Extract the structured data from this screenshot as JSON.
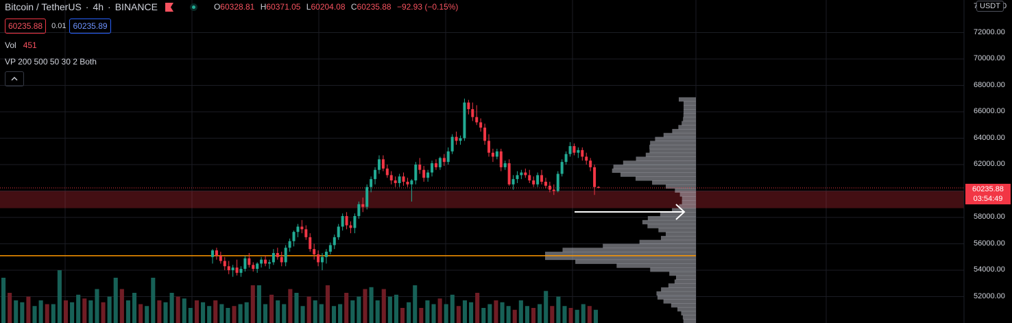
{
  "header": {
    "symbol": "Bitcoin / TetherUS",
    "interval": "4h",
    "exchange": "BINANCE",
    "ohlc": {
      "o_label": "O",
      "o": "60328.81",
      "h_label": "H",
      "h": "60371.05",
      "l_label": "L",
      "l": "60204.08",
      "c_label": "C",
      "c": "60235.88",
      "change": "−92.93 (−0.15%)"
    }
  },
  "trade": {
    "sell_price": "60235.88",
    "spread": "0.01",
    "buy_price": "60235.89"
  },
  "indicators": {
    "volume_label": "Vol",
    "volume_value": "451",
    "vp_label": "VP 200 500 50 30 2 Both"
  },
  "price_axis": {
    "currency_button": "USDT",
    "labels": [
      "72000.00",
      "70000.00",
      "68000.00",
      "66000.00",
      "64000.00",
      "62000.00",
      "58000.00",
      "56000.00",
      "54000.00",
      "52000.00"
    ],
    "top_partial": "7",
    "top_partial_right": "0",
    "current_price": "60235.88",
    "countdown": "03:54:49"
  },
  "colors": {
    "background": "#000000",
    "up": "#22ab94",
    "down": "#f23645",
    "vpoc": "#ff9800",
    "profile": "#b2b5be"
  },
  "chart_data": {
    "type": "candlestick",
    "symbol": "BTCUSDT",
    "interval": "4h",
    "y_axis": {
      "min": 50000,
      "max": 74000,
      "ticks": [
        52000,
        54000,
        56000,
        58000,
        60000,
        62000,
        64000,
        66000,
        68000,
        70000,
        72000
      ]
    },
    "last_close": 60235.88,
    "poc_price": 55100,
    "highlight_zone": [
      58700,
      60000
    ],
    "candles": [
      [
        55000,
        55600,
        54500,
        55500
      ],
      [
        55500,
        55700,
        54800,
        55100
      ],
      [
        55100,
        55400,
        54500,
        54700
      ],
      [
        54700,
        55000,
        54000,
        54300
      ],
      [
        54300,
        54700,
        53700,
        54000
      ],
      [
        54000,
        54400,
        53500,
        54200
      ],
      [
        54200,
        54800,
        53600,
        53800
      ],
      [
        53800,
        54300,
        53500,
        54100
      ],
      [
        54100,
        55100,
        53900,
        54900
      ],
      [
        54900,
        55300,
        54200,
        54400
      ],
      [
        54400,
        54600,
        53900,
        54100
      ],
      [
        54100,
        54600,
        53800,
        54500
      ],
      [
        54500,
        55000,
        54200,
        54800
      ],
      [
        54800,
        55100,
        54300,
        54500
      ],
      [
        54500,
        54800,
        54100,
        54600
      ],
      [
        54600,
        55600,
        54400,
        55300
      ],
      [
        55300,
        55700,
        54800,
        55000
      ],
      [
        55000,
        55400,
        54300,
        54600
      ],
      [
        54600,
        55900,
        54300,
        55700
      ],
      [
        55700,
        56400,
        55400,
        56200
      ],
      [
        56200,
        57000,
        55800,
        56900
      ],
      [
        56900,
        57500,
        56500,
        57300
      ],
      [
        57300,
        57800,
        56800,
        57100
      ],
      [
        57100,
        57400,
        56300,
        56500
      ],
      [
        56500,
        56800,
        55400,
        55600
      ],
      [
        55600,
        56000,
        54800,
        55200
      ],
      [
        55200,
        55500,
        54300,
        54600
      ],
      [
        54600,
        55300,
        54000,
        55000
      ],
      [
        55000,
        55600,
        54500,
        55400
      ],
      [
        55400,
        56100,
        55200,
        55900
      ],
      [
        55900,
        56700,
        55600,
        56500
      ],
      [
        56500,
        57500,
        56300,
        57300
      ],
      [
        57300,
        58300,
        57000,
        58100
      ],
      [
        58100,
        58400,
        57100,
        57400
      ],
      [
        57400,
        57700,
        56800,
        57200
      ],
      [
        57200,
        58300,
        56800,
        58100
      ],
      [
        58100,
        59200,
        57900,
        59000
      ],
      [
        59000,
        59500,
        58400,
        58800
      ],
      [
        58800,
        60500,
        58600,
        60300
      ],
      [
        60300,
        61100,
        59900,
        60900
      ],
      [
        60900,
        61800,
        60500,
        61600
      ],
      [
        61600,
        62700,
        61300,
        62400
      ],
      [
        62400,
        62700,
        61500,
        61700
      ],
      [
        61700,
        62000,
        61000,
        61200
      ],
      [
        61200,
        61500,
        60500,
        60800
      ],
      [
        60800,
        61100,
        60300,
        60600
      ],
      [
        60600,
        61300,
        60300,
        61100
      ],
      [
        61100,
        61400,
        60400,
        60700
      ],
      [
        60700,
        61000,
        60300,
        60500
      ],
      [
        60500,
        60900,
        59200,
        60800
      ],
      [
        60800,
        62200,
        60500,
        62000
      ],
      [
        62000,
        62500,
        61300,
        61600
      ],
      [
        61600,
        61900,
        60700,
        61000
      ],
      [
        61000,
        61600,
        60700,
        61400
      ],
      [
        61400,
        62300,
        61100,
        62100
      ],
      [
        62100,
        62400,
        61600,
        61800
      ],
      [
        61800,
        62600,
        61600,
        62500
      ],
      [
        62500,
        62800,
        61900,
        62200
      ],
      [
        62200,
        63300,
        62000,
        63000
      ],
      [
        63000,
        64300,
        62800,
        64100
      ],
      [
        64100,
        64500,
        63500,
        63800
      ],
      [
        63800,
        64200,
        63500,
        64000
      ],
      [
        64000,
        67000,
        63800,
        66700
      ],
      [
        66700,
        66900,
        65800,
        66200
      ],
      [
        66200,
        66700,
        65300,
        65600
      ],
      [
        65600,
        66500,
        65000,
        65200
      ],
      [
        65200,
        65500,
        64500,
        64800
      ],
      [
        64800,
        65100,
        63500,
        63800
      ],
      [
        63800,
        64300,
        62600,
        62900
      ],
      [
        62900,
        63200,
        62200,
        62600
      ],
      [
        62600,
        63200,
        62400,
        63000
      ],
      [
        63000,
        63200,
        61500,
        61800
      ],
      [
        61800,
        62300,
        61600,
        62100
      ],
      [
        62100,
        62400,
        60400,
        60500
      ],
      [
        60500,
        61200,
        60100,
        60900
      ],
      [
        60900,
        61500,
        60600,
        61200
      ],
      [
        61200,
        61600,
        60900,
        61400
      ],
      [
        61400,
        61700,
        61000,
        61200
      ],
      [
        61200,
        61600,
        60600,
        60800
      ],
      [
        60800,
        61100,
        60300,
        60500
      ],
      [
        60500,
        61400,
        60300,
        61200
      ],
      [
        61200,
        61600,
        60500,
        60700
      ],
      [
        60700,
        61000,
        60200,
        60400
      ],
      [
        60400,
        60700,
        59900,
        60100
      ],
      [
        60100,
        60500,
        59700,
        60000
      ],
      [
        60000,
        61500,
        59900,
        61300
      ],
      [
        61300,
        62400,
        61100,
        62200
      ],
      [
        62200,
        63000,
        62000,
        62800
      ],
      [
        62800,
        63700,
        62600,
        63400
      ],
      [
        63400,
        63600,
        62700,
        62900
      ],
      [
        62900,
        63300,
        62500,
        63100
      ],
      [
        63100,
        63300,
        62300,
        62600
      ],
      [
        62600,
        62900,
        62000,
        62300
      ],
      [
        62300,
        62500,
        61500,
        61800
      ],
      [
        61800,
        62000,
        59700,
        60300
      ],
      [
        60300,
        60371.05,
        60204.08,
        60235.88
      ]
    ],
    "volume": [
      120,
      80,
      60,
      55,
      70,
      45,
      60,
      50,
      50,
      140,
      60,
      55,
      75,
      65,
      60,
      90,
      55,
      70,
      120,
      90,
      60,
      80,
      50,
      45,
      120,
      60,
      55,
      80,
      70,
      65,
      40,
      60,
      55,
      45,
      60,
      50,
      40,
      45,
      50,
      55,
      100,
      100,
      50,
      75,
      60,
      50,
      90,
      80,
      45,
      70,
      60,
      50,
      100,
      45,
      50,
      80,
      60,
      70,
      90,
      95,
      60,
      90,
      70,
      75,
      40,
      55,
      100,
      40,
      60,
      50,
      65,
      50,
      75,
      45,
      60,
      55,
      80,
      40,
      50,
      60,
      55,
      45,
      35,
      60,
      45,
      40,
      50,
      85,
      45,
      70,
      45,
      40,
      35,
      50,
      45,
      35
    ]
  }
}
